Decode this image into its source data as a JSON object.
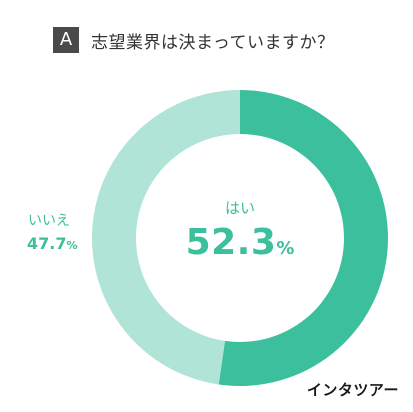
{
  "header": {
    "badge": "A",
    "question": "志望業界は決まっていますか？"
  },
  "chart_data": {
    "type": "pie",
    "donut": true,
    "categories": [
      "はい",
      "いいえ"
    ],
    "values": [
      52.3,
      47.7
    ],
    "value_labels": [
      "52.3",
      "47.7"
    ],
    "unit": "%",
    "colors": [
      "#3bbf9c",
      "#b0e4d6"
    ],
    "title": "志望業界は決まっていますか？"
  },
  "brand": "インタツアー"
}
